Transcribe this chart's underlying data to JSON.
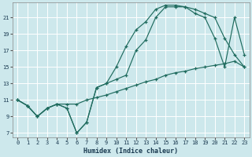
{
  "xlabel": "Humidex (Indice chaleur)",
  "bg_color": "#cde8ec",
  "grid_color": "#ffffff",
  "line_color": "#1f6b5e",
  "xlim": [
    -0.5,
    23.5
  ],
  "ylim": [
    6.5,
    22.8
  ],
  "xticks": [
    0,
    1,
    2,
    3,
    4,
    5,
    6,
    7,
    8,
    9,
    10,
    11,
    12,
    13,
    14,
    15,
    16,
    17,
    18,
    19,
    20,
    21,
    22,
    23
  ],
  "yticks": [
    7,
    9,
    11,
    13,
    15,
    17,
    19,
    21
  ],
  "line1_x": [
    0,
    1,
    2,
    3,
    4,
    5,
    6,
    7,
    8,
    9,
    10,
    11,
    12,
    13,
    14,
    15,
    16,
    17,
    18,
    19,
    20,
    21,
    22,
    23
  ],
  "line1_y": [
    11,
    10.3,
    9,
    10,
    10.5,
    10,
    7,
    8.3,
    12.5,
    13,
    15,
    17.5,
    19.5,
    20.5,
    22,
    22.5,
    22.5,
    22.3,
    22,
    21.5,
    21,
    18.5,
    16.5,
    15
  ],
  "line2_x": [
    0,
    1,
    2,
    3,
    4,
    5,
    6,
    7,
    8,
    9,
    10,
    11,
    12,
    13,
    14,
    15,
    16,
    17,
    18,
    19,
    20,
    21,
    22,
    23
  ],
  "line2_y": [
    11,
    10.3,
    9,
    10,
    10.5,
    10,
    7,
    8.3,
    12.5,
    13,
    13.5,
    14,
    17,
    18.3,
    21,
    22.3,
    22.3,
    22.3,
    21.5,
    21,
    18.5,
    15,
    21,
    16.5
  ],
  "line3_x": [
    0,
    1,
    2,
    3,
    4,
    5,
    6,
    7,
    8,
    9,
    10,
    11,
    12,
    13,
    14,
    15,
    16,
    17,
    18,
    19,
    20,
    21,
    22,
    23
  ],
  "line3_y": [
    11,
    10.3,
    9,
    10,
    10.5,
    10.5,
    10.5,
    11,
    11.3,
    11.6,
    12,
    12.4,
    12.8,
    13.2,
    13.5,
    14,
    14.3,
    14.5,
    14.8,
    15,
    15.2,
    15.4,
    15.7,
    15
  ]
}
